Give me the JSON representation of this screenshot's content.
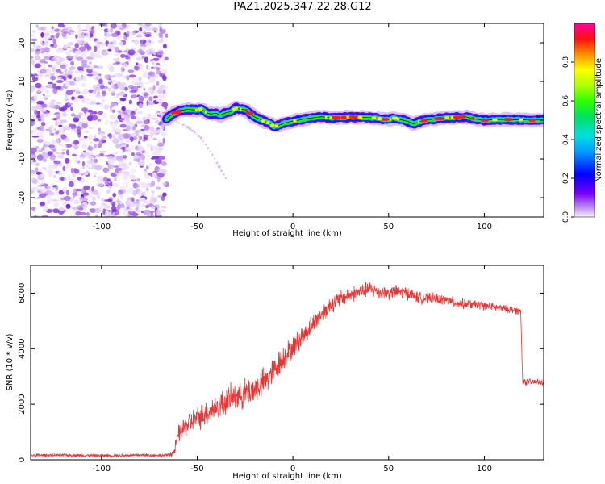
{
  "figure_title": "PAZ1.2025.347.22.28.G12",
  "chart_data": [
    {
      "type": "heatmap",
      "title": "PAZ1.2025.347.22.28.G12",
      "xlabel": "Height of straight line (km)",
      "ylabel": "Frequency (Hz)",
      "xlim": [
        -137,
        131
      ],
      "ylim": [
        -25,
        25
      ],
      "xticks": [
        -100,
        -50,
        0,
        50,
        100
      ],
      "yticks": [
        -20,
        -10,
        0,
        10,
        20
      ],
      "noise_region_x": [
        -137,
        -66
      ],
      "ridge": {
        "x": [
          -66,
          -65,
          -62,
          -60,
          -58,
          -55,
          -52,
          -50,
          -48,
          -45,
          -43,
          -40,
          -38,
          -35,
          -32,
          -30,
          -28,
          -25,
          -22,
          -20,
          -17,
          -15,
          -12,
          -10,
          -8,
          -5,
          -2,
          0,
          3,
          6,
          10,
          15,
          20,
          30,
          40,
          50,
          53,
          55,
          60,
          63,
          66,
          70,
          80,
          90,
          95,
          100,
          110,
          120,
          125,
          131
        ],
        "y": [
          0.3,
          0.8,
          1.8,
          2.3,
          2.6,
          2.8,
          2.7,
          2.6,
          2.9,
          1.9,
          1.6,
          1.8,
          1.3,
          1.9,
          2.3,
          3.2,
          2.9,
          2.7,
          1.6,
          0.8,
          0.2,
          -0.3,
          -0.8,
          -1.6,
          -1.5,
          -0.8,
          -0.5,
          -0.2,
          0.0,
          0.3,
          0.6,
          0.9,
          0.6,
          0.8,
          0.7,
          0.1,
          0.6,
          0.3,
          -0.3,
          -1.0,
          -0.4,
          0.1,
          0.6,
          0.9,
          0.3,
          0.0,
          0.2,
          0.1,
          0.0,
          0.1
        ]
      },
      "faint_branch": {
        "x": [
          -62,
          -55,
          -48,
          -42,
          -38,
          -35
        ],
        "y": [
          0.0,
          -1.8,
          -4.5,
          -9.0,
          -12.5,
          -15.0
        ]
      },
      "colorbar": {
        "label": "Normalized spectral amplitude",
        "range": [
          0,
          1
        ],
        "ticks": [
          0.0,
          0.2,
          0.4,
          0.6,
          0.8
        ]
      }
    },
    {
      "type": "line",
      "xlabel": "Height of straight line (km)",
      "ylabel": "SNR (10 * v/v)",
      "xlim": [
        -137,
        131
      ],
      "ylim": [
        0,
        7000
      ],
      "xticks": [
        -100,
        -50,
        0,
        50,
        100
      ],
      "yticks": [
        0,
        2000,
        4000,
        6000
      ],
      "series": [
        {
          "name": "SNR",
          "color": "#ee3333",
          "x": [
            -137,
            -120,
            -100,
            -80,
            -66,
            -62,
            -60,
            -55,
            -50,
            -45,
            -40,
            -35,
            -30,
            -25,
            -20,
            -15,
            -10,
            -5,
            0,
            5,
            10,
            15,
            20,
            25,
            30,
            35,
            40,
            45,
            50,
            55,
            60,
            65,
            70,
            75,
            80,
            85,
            90,
            95,
            100,
            105,
            110,
            115,
            119,
            120,
            122,
            125,
            131
          ],
          "values": [
            160,
            170,
            150,
            170,
            160,
            280,
            900,
            1300,
            1500,
            1700,
            1900,
            2100,
            2300,
            2400,
            2550,
            2800,
            3200,
            3700,
            4050,
            4450,
            4850,
            5250,
            5600,
            5800,
            5950,
            6050,
            6150,
            6050,
            6000,
            6050,
            6000,
            5850,
            5800,
            5800,
            5750,
            5650,
            5600,
            5600,
            5550,
            5500,
            5450,
            5400,
            5350,
            2850,
            2800,
            2800,
            2800
          ],
          "noise_amplitude": [
            70,
            70,
            70,
            70,
            70,
            180,
            380,
            480,
            520,
            560,
            580,
            600,
            620,
            650,
            650,
            620,
            600,
            550,
            500,
            450,
            420,
            400,
            380,
            360,
            340,
            330,
            330,
            320,
            300,
            290,
            280,
            260,
            240,
            230,
            220,
            220,
            210,
            200,
            190,
            180,
            170,
            170,
            160,
            150,
            140,
            140,
            140
          ]
        }
      ]
    }
  ]
}
